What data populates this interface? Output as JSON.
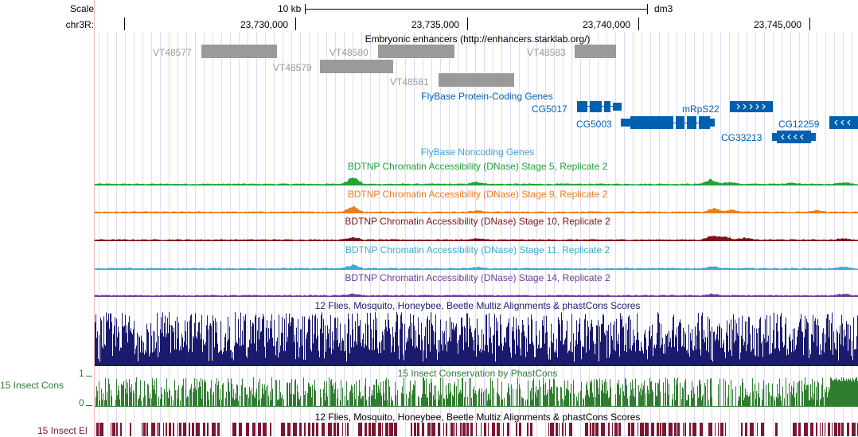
{
  "header": {
    "scale_label": "Scale",
    "scale_bar_text": "10 kb",
    "assembly": "dm3",
    "chrom_label": "chr3R:",
    "positions": [
      "23,730,000",
      "23,735,000",
      "23,740,000",
      "23,745,000"
    ]
  },
  "enhancers": {
    "title": "Embryonic enhancers (http://enhancers.starklab.org/)",
    "items": [
      {
        "name": "VT48577"
      },
      {
        "name": "VT48580"
      },
      {
        "name": "VT48579"
      },
      {
        "name": "VT48581"
      },
      {
        "name": "VT48583"
      }
    ]
  },
  "genes": {
    "title": "FlyBase Protein-Coding Genes",
    "items": [
      {
        "name": "CG5017"
      },
      {
        "name": "CG5003"
      },
      {
        "name": "mRpS22"
      },
      {
        "name": "CG12259"
      },
      {
        "name": "CG33213"
      }
    ]
  },
  "noncoding": {
    "title": "FlyBase Noncoding Genes"
  },
  "dnase": [
    {
      "title": "BDTNP Chromatin Accessibility (DNase) Stage 5, Replicate 2",
      "color": "#22a336"
    },
    {
      "title": "BDTNP Chromatin Accessibility (DNase) Stage 9, Replicate 2",
      "color": "#f07d1c"
    },
    {
      "title": "BDTNP Chromatin Accessibility (DNase) Stage 10, Replicate 2",
      "color": "#7d1616"
    },
    {
      "title": "BDTNP Chromatin Accessibility (DNase) Stage 11, Replicate 2",
      "color": "#3ea8d0"
    },
    {
      "title": "BDTNP Chromatin Accessibility (DNase) Stage 14, Replicate 2",
      "color": "#6d3c9a"
    }
  ],
  "multiz": {
    "title": "12 Flies, Mosquito, Honeybee, Beetle Multiz Alignments & phastCons Scores",
    "color": "#1a1a6e"
  },
  "phastcons": {
    "title": "15 Insect Conservation by PhastCons",
    "side_label": "15 Insect Cons",
    "y_max": "1",
    "y_min": "0",
    "color": "#2f7d2f"
  },
  "elements": {
    "title": "12 Flies, Mosquito, Honeybee, Beetle Multiz Alignments & phastCons Scores",
    "side_label": "15 Insect El",
    "color": "#7d1630"
  }
}
